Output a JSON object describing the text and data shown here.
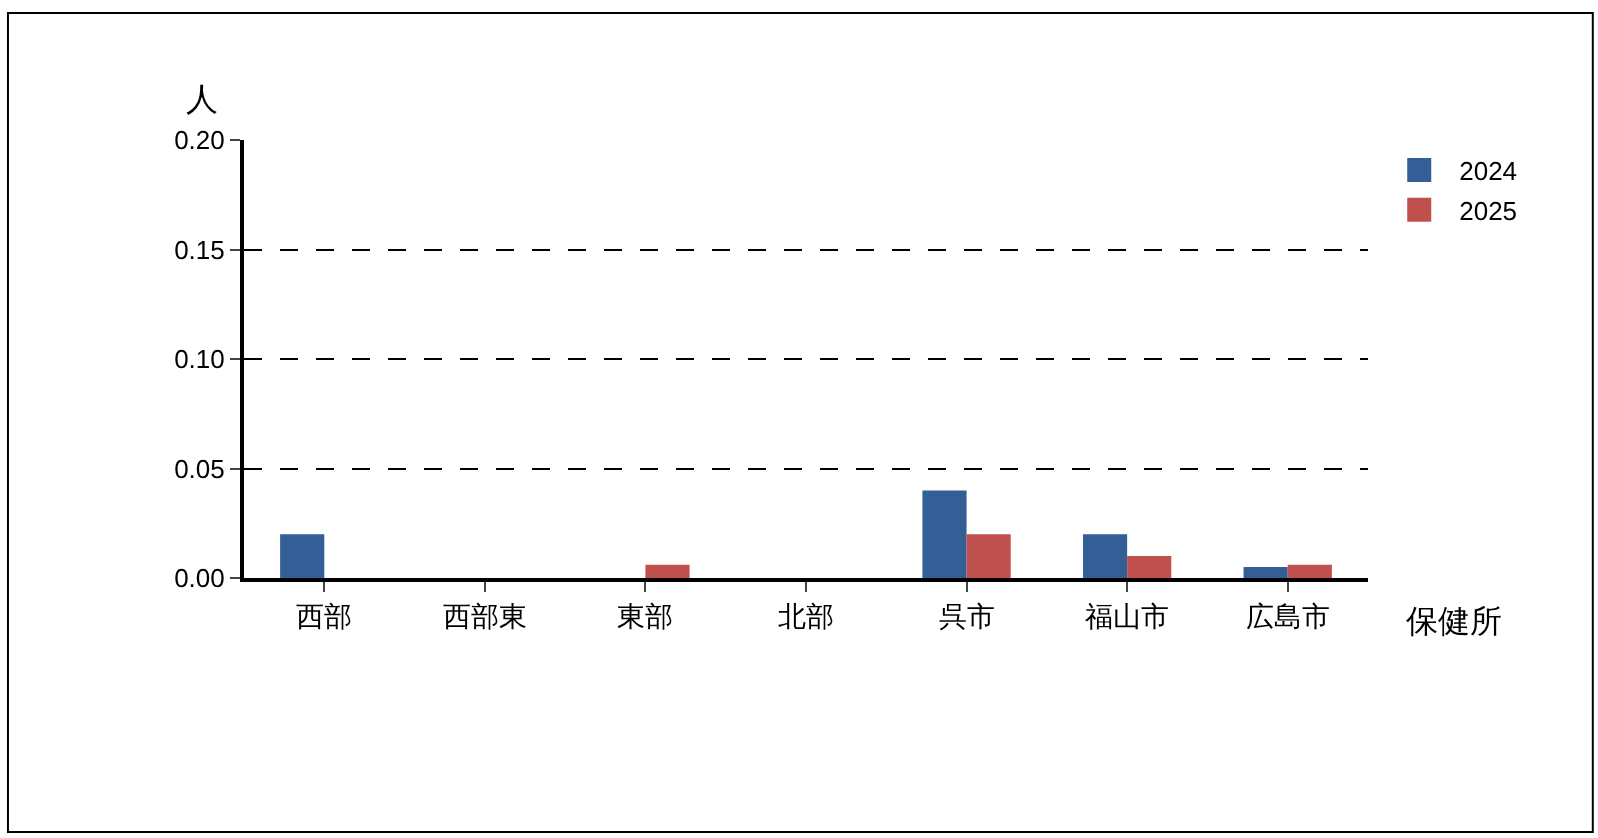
{
  "chart_data": {
    "type": "bar",
    "ylabel": "人",
    "xlabel": "保健所",
    "categories": [
      "西部",
      "西部東",
      "東部",
      "北部",
      "呉市",
      "福山市",
      "広島市"
    ],
    "series": [
      {
        "name": "2024",
        "color": "#335f96",
        "values": [
          0.02,
          0,
          0,
          0,
          0.04,
          0.02,
          0.005
        ]
      },
      {
        "name": "2025",
        "color": "#c0504d",
        "values": [
          0,
          0,
          0.006,
          0,
          0.02,
          0.01,
          0.006
        ]
      }
    ],
    "ylim": [
      0,
      0.2
    ],
    "yticks": [
      {
        "value": 0,
        "label": "0.00"
      },
      {
        "value": 0.05,
        "label": "0.05"
      },
      {
        "value": 0.1,
        "label": "0.10"
      },
      {
        "value": 0.15,
        "label": "0.15"
      },
      {
        "value": 0.2,
        "label": "0.20"
      }
    ],
    "grid": "y",
    "legend": "top right"
  }
}
